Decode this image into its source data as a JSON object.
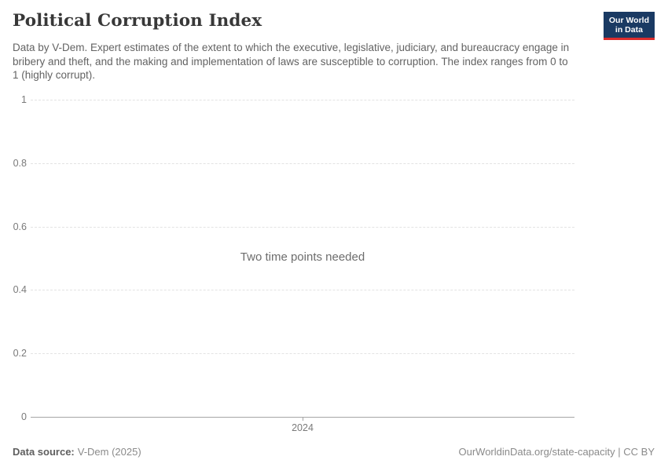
{
  "header": {
    "title": "Political Corruption Index",
    "subtitle": "Data by V-Dem. Expert estimates of the extent to which the executive, legislative, judiciary, and bureaucracy engage in bribery and theft, and the making and implementation of laws are susceptible to corruption. The index ranges from 0 to 1 (highly corrupt)."
  },
  "logo": {
    "line1": "Our World",
    "line2": "in Data"
  },
  "chart_data": {
    "type": "line",
    "title": "Political Corruption Index",
    "series": [],
    "message": "Two time points needed",
    "ylabel": "",
    "xlabel": "",
    "ylim": [
      0,
      1
    ],
    "yticks": [
      {
        "value": 0,
        "label": "0"
      },
      {
        "value": 0.2,
        "label": "0.2"
      },
      {
        "value": 0.4,
        "label": "0.4"
      },
      {
        "value": 0.6,
        "label": "0.6"
      },
      {
        "value": 0.8,
        "label": "0.8"
      },
      {
        "value": 1,
        "label": "1"
      }
    ],
    "xticks": [
      {
        "label": "2024"
      }
    ],
    "grid": "horizontal-dashed",
    "legend": "none"
  },
  "footer": {
    "data_source_label": "Data source:",
    "data_source_value": "V-Dem (2025)",
    "attribution": "OurWorldinData.org/state-capacity | CC BY"
  },
  "colors": {
    "logo_background": "#1a3a63",
    "logo_underline": "#dc2c2c",
    "title_text": "#383838",
    "subtitle_text": "#636363",
    "axis_label": "#7a7a7a",
    "gridline": "#e3e3e3",
    "axis_line": "#a5a5a5",
    "message_text": "#6d6d6d"
  }
}
